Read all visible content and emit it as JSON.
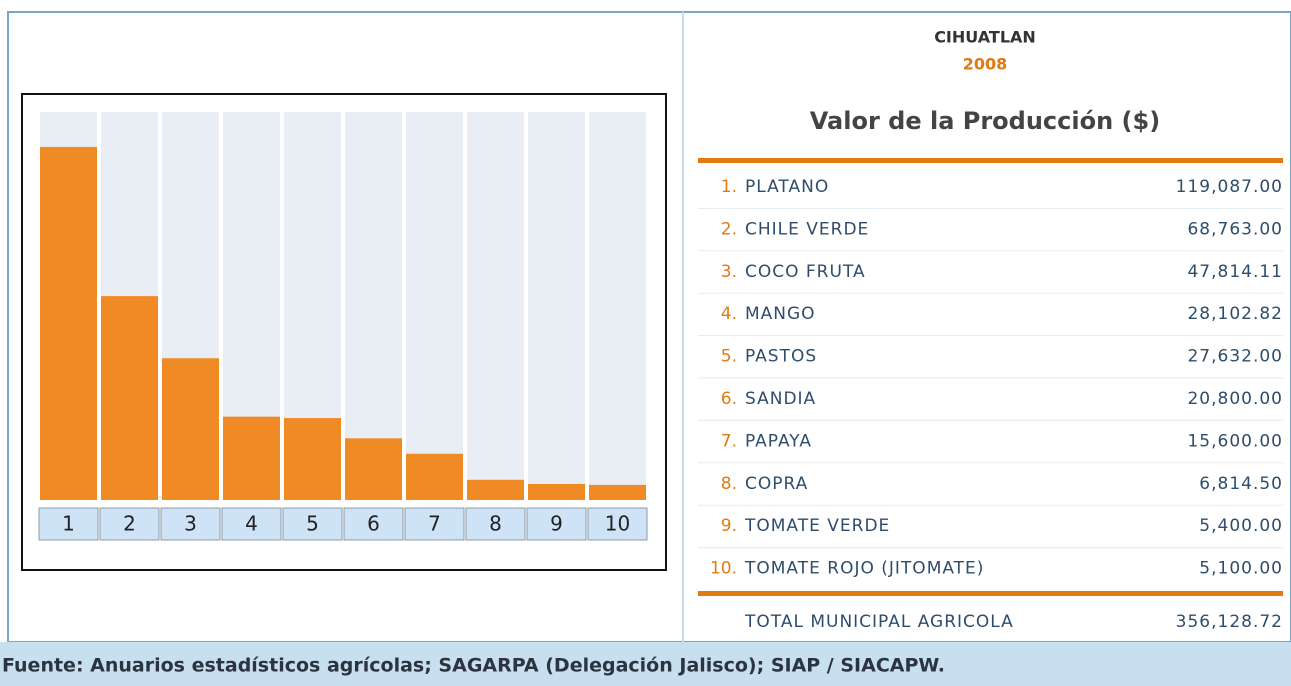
{
  "chart_data": {
    "type": "bar",
    "categories": [
      "1",
      "2",
      "3",
      "4",
      "5",
      "6",
      "7",
      "8",
      "9",
      "10"
    ],
    "values": [
      119087.0,
      68763.0,
      47814.11,
      28102.82,
      27632.0,
      20800.0,
      15600.0,
      6814.5,
      5400.0,
      5100.0
    ],
    "color": "#f08a24"
  },
  "header": {
    "place": "CIHUATLAN",
    "year": "2008",
    "title": "Valor de la Producción ($)"
  },
  "table": {
    "rows": [
      {
        "rank": "1.",
        "name": "PLATANO",
        "value": "119,087.00"
      },
      {
        "rank": "2.",
        "name": "CHILE VERDE",
        "value": "68,763.00"
      },
      {
        "rank": "3.",
        "name": "COCO FRUTA",
        "value": "47,814.11"
      },
      {
        "rank": "4.",
        "name": "MANGO",
        "value": "28,102.82"
      },
      {
        "rank": "5.",
        "name": "PASTOS",
        "value": "27,632.00"
      },
      {
        "rank": "6.",
        "name": "SANDIA",
        "value": "20,800.00"
      },
      {
        "rank": "7.",
        "name": "PAPAYA",
        "value": "15,600.00"
      },
      {
        "rank": "8.",
        "name": "COPRA",
        "value": "6,814.50"
      },
      {
        "rank": "9.",
        "name": "TOMATE VERDE",
        "value": "5,400.00"
      },
      {
        "rank": "10.",
        "name": "TOMATE ROJO (JITOMATE)",
        "value": "5,100.00"
      }
    ],
    "total": {
      "name": "TOTAL MUNICIPAL AGRICOLA",
      "value": "356,128.72"
    }
  },
  "footer": {
    "source": "Fuente: Anuarios estadísticos agrícolas; SAGARPA (Delegación Jalisco); SIAP / SIACAPW."
  }
}
